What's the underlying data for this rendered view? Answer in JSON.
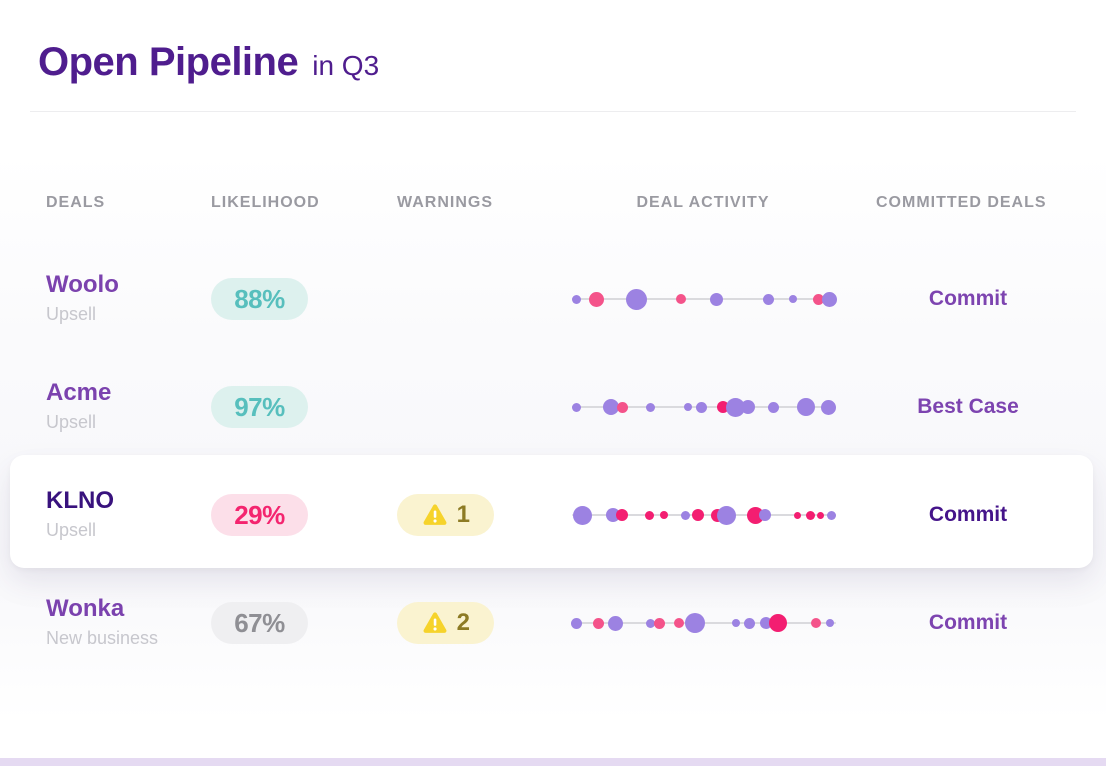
{
  "title": {
    "main": "Open Pipeline",
    "suffix": "in Q3"
  },
  "columns": {
    "deals": "Deals",
    "likelihood": "Likelihood",
    "warnings": "Warnings",
    "activity": "Deal Activity",
    "committed": "Committed Deals"
  },
  "rows": [
    {
      "name": "Woolo",
      "type": "Upsell",
      "likelihood": {
        "value": "88%",
        "variant": "teal"
      },
      "warning": null,
      "commit": "Commit",
      "highlighted": false,
      "activity_dots": [
        [
          8,
          9,
          "p"
        ],
        [
          28,
          15,
          "k"
        ],
        [
          68,
          21,
          "p"
        ],
        [
          113,
          10,
          "k"
        ],
        [
          148,
          13,
          "p"
        ],
        [
          200,
          11,
          "p"
        ],
        [
          225,
          8,
          "p"
        ],
        [
          250,
          11,
          "k"
        ],
        [
          261,
          15,
          "p"
        ]
      ]
    },
    {
      "name": "Acme",
      "type": "Upsell",
      "likelihood": {
        "value": "97%",
        "variant": "teal"
      },
      "warning": null,
      "commit": "Best Case",
      "highlighted": false,
      "activity_dots": [
        [
          8,
          9,
          "p"
        ],
        [
          43,
          16,
          "p"
        ],
        [
          54,
          11,
          "k"
        ],
        [
          82,
          9,
          "p"
        ],
        [
          120,
          8,
          "p"
        ],
        [
          133,
          11,
          "p"
        ],
        [
          155,
          12,
          "m"
        ],
        [
          167,
          19,
          "p"
        ],
        [
          180,
          14,
          "p"
        ],
        [
          205,
          11,
          "p"
        ],
        [
          238,
          18,
          "p"
        ],
        [
          260,
          15,
          "p"
        ]
      ]
    },
    {
      "name": "KLNO",
      "type": "Upsell",
      "likelihood": {
        "value": "29%",
        "variant": "pink"
      },
      "warning": "1",
      "commit": "Commit",
      "highlighted": true,
      "activity_dots": [
        [
          14,
          19,
          "p"
        ],
        [
          45,
          14,
          "p"
        ],
        [
          54,
          12,
          "m"
        ],
        [
          81,
          9,
          "m"
        ],
        [
          96,
          8,
          "m"
        ],
        [
          117,
          9,
          "p"
        ],
        [
          130,
          12,
          "m"
        ],
        [
          149,
          13,
          "m"
        ],
        [
          158,
          19,
          "p"
        ],
        [
          187,
          17,
          "m"
        ],
        [
          197,
          12,
          "p"
        ],
        [
          229,
          7,
          "m"
        ],
        [
          242,
          9,
          "m"
        ],
        [
          252,
          7,
          "m"
        ],
        [
          263,
          9,
          "p"
        ]
      ]
    },
    {
      "name": "Wonka",
      "type": "New business",
      "likelihood": {
        "value": "67%",
        "variant": "gray"
      },
      "warning": "2",
      "commit": "Commit",
      "highlighted": false,
      "activity_dots": [
        [
          8,
          11,
          "p"
        ],
        [
          30,
          11,
          "k"
        ],
        [
          47,
          15,
          "p"
        ],
        [
          82,
          9,
          "p"
        ],
        [
          91,
          11,
          "k"
        ],
        [
          111,
          10,
          "k"
        ],
        [
          127,
          20,
          "p"
        ],
        [
          168,
          8,
          "p"
        ],
        [
          181,
          11,
          "p"
        ],
        [
          198,
          12,
          "p"
        ],
        [
          210,
          18,
          "m"
        ],
        [
          248,
          10,
          "k"
        ],
        [
          262,
          8,
          "p"
        ]
      ]
    }
  ],
  "theme": {
    "title_purple": "#4f1d8e",
    "deal_name_purple": "#7b42ae",
    "highlight_name_indigo": "#38127d",
    "header_gray": "#9a9aa1",
    "subtitle_gray": "#c7c7cd",
    "teal_pill_bg": "#ddf1ee",
    "teal_pill_text": "#57bfbd",
    "pink_pill_bg": "#fcdfe9",
    "pink_pill_text": "#f4256f",
    "gray_pill_bg": "#efeff1",
    "gray_pill_text": "#8f8f94",
    "warn_pill_bg": "#faf3d0",
    "warn_pill_text": "#8d7b24",
    "warn_triangle": "#f6d32b",
    "dot_colors": {
      "p": "#9c82e2",
      "k": "#f4538a",
      "m": "#f31e71"
    },
    "track_line": "#dadade",
    "bottom_bar": "#e5daf2"
  }
}
